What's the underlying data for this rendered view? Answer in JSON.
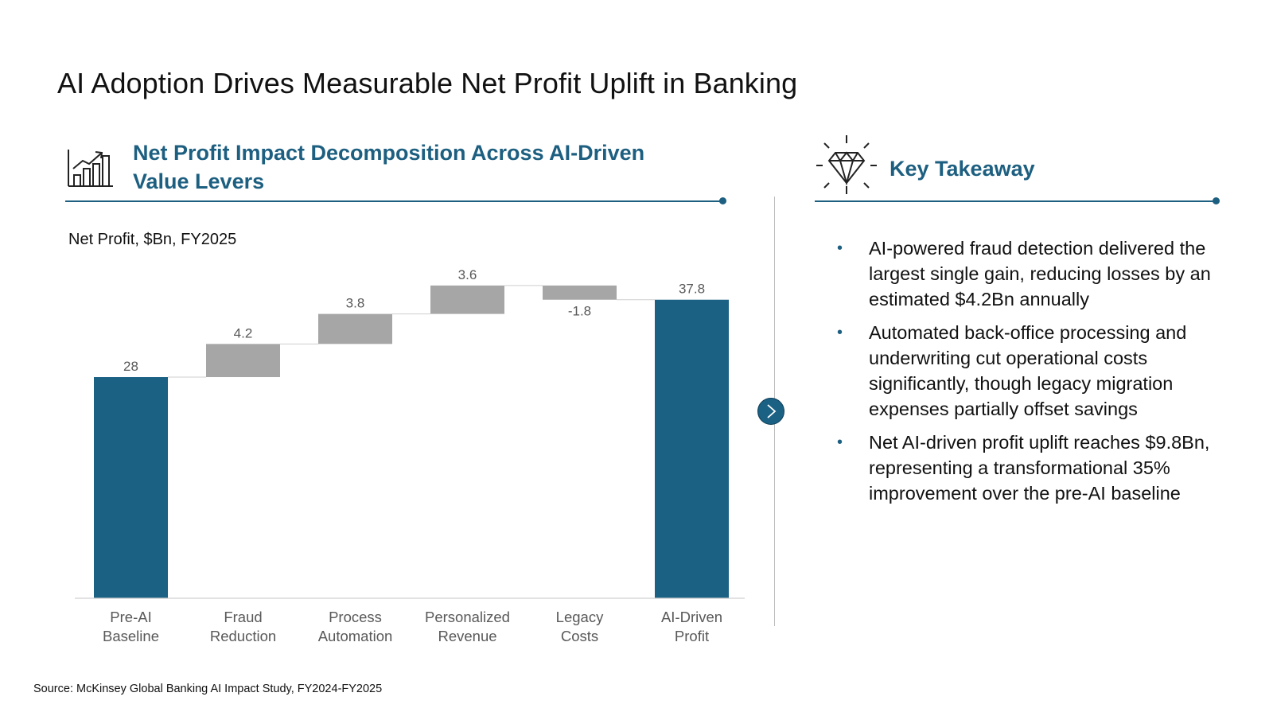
{
  "title": "AI Adoption Drives Measurable Net Profit Uplift in Banking",
  "left_panel": {
    "title_line1": "Net Profit Impact Decomposition Across AI-Driven",
    "title_line2": "Value Levers",
    "icon": "bar-chart-growth-icon",
    "chart_subtitle": "Net Profit, $Bn, FY2025"
  },
  "right_panel": {
    "title": "Key Takeaway",
    "icon": "diamond-icon",
    "bullets": [
      "AI-powered fraud detection delivered the largest single gain, reducing losses by an estimated $4.2Bn annually",
      "Automated back-office processing and underwriting cut operational costs significantly, though legacy migration expenses partially offset savings",
      "Net AI-driven profit uplift reaches $9.8Bn, representing a transformational 35% improvement over the pre-AI baseline"
    ]
  },
  "next_button_icon": "chevron-right-icon",
  "source": "Source: McKinsey Global Banking AI Impact Study, FY2024-FY2025",
  "colors": {
    "accent": "#1d5f80",
    "total_bar": "#1a6184",
    "delta_bar": "#a6a6a6"
  },
  "chart_data": {
    "type": "waterfall",
    "unit": "Net Profit, $Bn, FY2025",
    "categories": [
      [
        "Pre-AI",
        "Baseline"
      ],
      [
        "Fraud",
        "Reduction"
      ],
      [
        "Process",
        "Automation"
      ],
      [
        "Personalized",
        "Revenue"
      ],
      [
        "Legacy",
        "Costs"
      ],
      [
        "AI-Driven",
        "Profit"
      ]
    ],
    "values": [
      28,
      4.2,
      3.8,
      3.6,
      -1.8,
      37.8
    ],
    "labels": [
      "28",
      "4.2",
      "3.8",
      "3.6",
      "-1.8",
      "37.8"
    ],
    "kinds": [
      "total",
      "delta",
      "delta",
      "delta",
      "delta",
      "total"
    ],
    "ylim": [
      0,
      41.5
    ],
    "gridlines": false,
    "connectors": true
  }
}
